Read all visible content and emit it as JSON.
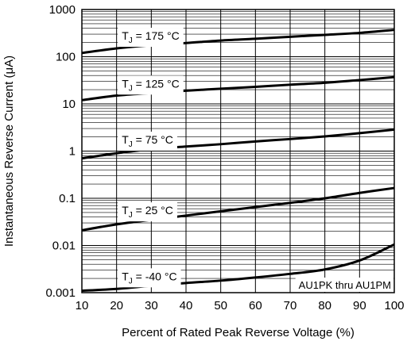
{
  "chart_data": {
    "type": "line",
    "title": "",
    "xlabel": "Percent of Rated Peak Reverse Voltage (%)",
    "ylabel": "Instantaneous Reverse Current (μA)",
    "x_scale": "linear",
    "y_scale": "log",
    "xlim": [
      10,
      100
    ],
    "ylim": [
      0.001,
      1000
    ],
    "x_ticks": [
      "10",
      "20",
      "30",
      "40",
      "50",
      "60",
      "70",
      "80",
      "90",
      "100"
    ],
    "y_ticks": [
      "0.001",
      "0.01",
      "0.1",
      "1",
      "10",
      "100",
      "1000"
    ],
    "grid": true,
    "annotation": "AU1PK thru AU1PM",
    "series": [
      {
        "name": "T_J = 175 °C",
        "label_main": "T",
        "label_sub": "J",
        "label_rest": " = 175 °C",
        "x": [
          10,
          20,
          30,
          40,
          50,
          60,
          70,
          80,
          90,
          100
        ],
        "y": [
          120,
          150,
          175,
          195,
          220,
          240,
          265,
          290,
          320,
          370
        ]
      },
      {
        "name": "T_J = 125 °C",
        "label_main": "T",
        "label_sub": "J",
        "label_rest": " = 125 °C",
        "x": [
          10,
          20,
          30,
          40,
          50,
          60,
          70,
          80,
          90,
          100
        ],
        "y": [
          12,
          15,
          17,
          19,
          21,
          23,
          25.5,
          28,
          32,
          37
        ]
      },
      {
        "name": "T_J = 75 °C",
        "label_main": "T",
        "label_sub": "J",
        "label_rest": " = 75 °C",
        "x": [
          10,
          20,
          30,
          40,
          50,
          60,
          70,
          80,
          90,
          100
        ],
        "y": [
          0.7,
          0.9,
          1.1,
          1.25,
          1.4,
          1.6,
          1.8,
          2.05,
          2.4,
          2.85
        ]
      },
      {
        "name": "T_J = 25 °C",
        "label_main": "T",
        "label_sub": "J",
        "label_rest": " = 25 °C",
        "x": [
          10,
          20,
          30,
          40,
          50,
          60,
          70,
          80,
          90,
          100
        ],
        "y": [
          0.021,
          0.028,
          0.035,
          0.043,
          0.053,
          0.065,
          0.08,
          0.1,
          0.13,
          0.165
        ]
      },
      {
        "name": "T_J = -40 °C",
        "label_main": "T",
        "label_sub": "J",
        "label_rest": " = -40 °C",
        "x": [
          10,
          20,
          30,
          40,
          50,
          60,
          70,
          80,
          90,
          100
        ],
        "y": [
          0.0011,
          0.0012,
          0.0014,
          0.0016,
          0.0018,
          0.0021,
          0.0025,
          0.0031,
          0.0048,
          0.0105
        ]
      }
    ]
  }
}
